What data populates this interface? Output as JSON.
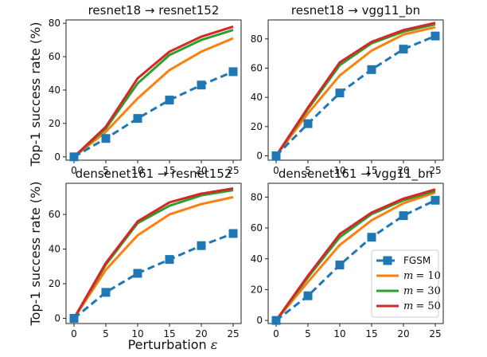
{
  "figure": {
    "ylabel": "Top-1 success rate (%)",
    "xlabel_text": "Perturbation",
    "xlabel_symbol": "ε"
  },
  "legend": {
    "position": "lower-right",
    "panel_index": 3,
    "entries": [
      {
        "series": "FGSM",
        "text": "FGSM"
      },
      {
        "series": "m=10",
        "var": "m",
        "eq": "= 10"
      },
      {
        "series": "m=30",
        "var": "m",
        "eq": "= 30"
      },
      {
        "series": "m=50",
        "var": "m",
        "eq": "= 50"
      }
    ]
  },
  "colors": {
    "FGSM": "#1f77b4",
    "m=10": "#ff7f0e",
    "m=30": "#2ca02c",
    "m=50": "#d62728"
  },
  "chart_data": [
    {
      "type": "line",
      "title": "resnet18 → resnet152",
      "x": [
        0,
        5,
        10,
        15,
        20,
        25
      ],
      "xticks": [
        "0",
        "5",
        "10",
        "15",
        "20",
        "25"
      ],
      "ylim": [
        -2,
        82
      ],
      "yticks": [
        "0",
        "20",
        "40",
        "60",
        "80"
      ],
      "series": [
        {
          "name": "FGSM",
          "values": [
            0,
            11,
            23,
            34,
            43,
            51
          ]
        },
        {
          "name": "m=10",
          "values": [
            0,
            15,
            35,
            52,
            63,
            71
          ]
        },
        {
          "name": "m=30",
          "values": [
            0,
            17,
            44,
            61,
            70,
            76
          ]
        },
        {
          "name": "m=50",
          "values": [
            0,
            18,
            47,
            63,
            72,
            78
          ]
        }
      ]
    },
    {
      "type": "line",
      "title": "resnet18 → vgg11_bn",
      "x": [
        0,
        5,
        10,
        15,
        20,
        25
      ],
      "xticks": [
        "0",
        "5",
        "10",
        "15",
        "20",
        "25"
      ],
      "ylim": [
        -3,
        93
      ],
      "yticks": [
        "0",
        "20",
        "40",
        "60",
        "80"
      ],
      "series": [
        {
          "name": "FGSM",
          "values": [
            0,
            22,
            43,
            59,
            73,
            82
          ]
        },
        {
          "name": "m=10",
          "values": [
            0,
            29,
            55,
            72,
            83,
            88
          ]
        },
        {
          "name": "m=30",
          "values": [
            0,
            32,
            62,
            77,
            85,
            90
          ]
        },
        {
          "name": "m=50",
          "values": [
            0,
            33,
            64,
            78,
            86,
            91
          ]
        }
      ]
    },
    {
      "type": "line",
      "title": "densenet161 → resnet152",
      "x": [
        0,
        5,
        10,
        15,
        20,
        25
      ],
      "xticks": [
        "0",
        "5",
        "10",
        "15",
        "20",
        "25"
      ],
      "ylim": [
        -3,
        78
      ],
      "yticks": [
        "0",
        "20",
        "40",
        "60"
      ],
      "series": [
        {
          "name": "FGSM",
          "values": [
            0,
            15,
            26,
            34,
            42,
            49
          ]
        },
        {
          "name": "m=10",
          "values": [
            0,
            28,
            48,
            60,
            66,
            70
          ]
        },
        {
          "name": "m=30",
          "values": [
            0,
            31,
            55,
            65,
            71,
            74
          ]
        },
        {
          "name": "m=50",
          "values": [
            0,
            32,
            56,
            67,
            72,
            75
          ]
        }
      ]
    },
    {
      "type": "line",
      "title": "densenet161 → vgg11_bn",
      "x": [
        0,
        5,
        10,
        15,
        20,
        25
      ],
      "xticks": [
        "0",
        "5",
        "10",
        "15",
        "20",
        "25"
      ],
      "ylim": [
        -2,
        89
      ],
      "yticks": [
        "0",
        "20",
        "40",
        "60",
        "80"
      ],
      "series": [
        {
          "name": "FGSM",
          "values": [
            0,
            16,
            36,
            54,
            68,
            78
          ]
        },
        {
          "name": "m=10",
          "values": [
            0,
            25,
            49,
            65,
            76,
            83
          ]
        },
        {
          "name": "m=30",
          "values": [
            0,
            28,
            54,
            69,
            78,
            84
          ]
        },
        {
          "name": "m=50",
          "values": [
            0,
            29,
            56,
            70,
            79,
            85
          ]
        }
      ]
    }
  ]
}
